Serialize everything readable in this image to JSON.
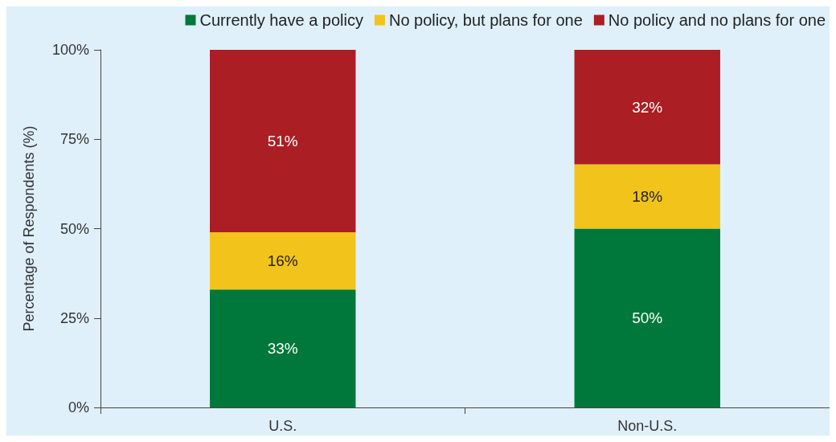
{
  "chart_data": {
    "type": "bar",
    "stacked": true,
    "ylabel": "Percentage of Respondents (%)",
    "categories": [
      "U.S.",
      "Non-U.S."
    ],
    "series": [
      {
        "name": "Currently have a policy",
        "color": "#00773b",
        "values": [
          33,
          50
        ],
        "value_labels": [
          "33%",
          "50%"
        ]
      },
      {
        "name": "No policy, but plans for one",
        "color": "#f2c31a",
        "values": [
          16,
          18
        ],
        "value_labels": [
          "16%",
          "18%"
        ]
      },
      {
        "name": "No policy and no plans for one",
        "color": "#ab1e23",
        "values": [
          51,
          32
        ],
        "value_labels": [
          "51%",
          "32%"
        ]
      }
    ],
    "ylim": [
      0,
      100
    ],
    "yticks": [
      {
        "value": 0,
        "label": "0%"
      },
      {
        "value": 25,
        "label": "25%"
      },
      {
        "value": 50,
        "label": "50%"
      },
      {
        "value": 75,
        "label": "75%"
      },
      {
        "value": 100,
        "label": "100%"
      }
    ],
    "grid": false,
    "legend": "top"
  }
}
